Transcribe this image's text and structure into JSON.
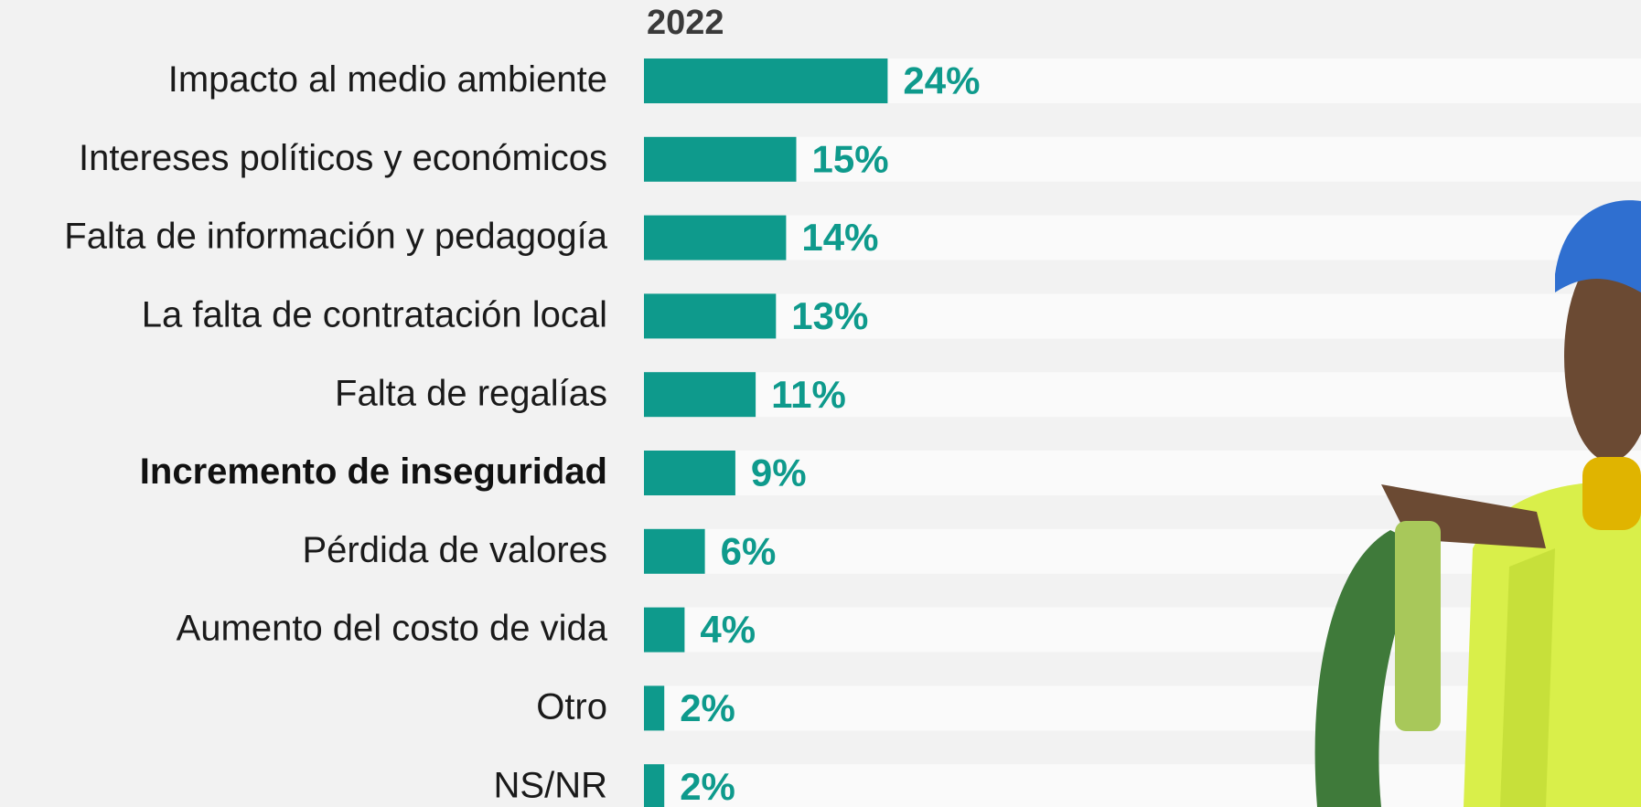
{
  "chart_data": {
    "type": "bar",
    "orientation": "horizontal",
    "title": "2022",
    "categories": [
      "Impacto al medio ambiente",
      "Intereses políticos y económicos",
      "Falta de información y pedagogía",
      "La falta de contratación local",
      "Falta de regalías",
      "Incremento de inseguridad",
      "Pérdida de valores",
      "Aumento del costo de vida",
      "Otro",
      "NS/NR"
    ],
    "values": [
      24,
      15,
      14,
      13,
      11,
      9,
      6,
      4,
      2,
      2
    ],
    "value_labels": [
      "24%",
      "15%",
      "14%",
      "13%",
      "11%",
      "9%",
      "6%",
      "4%",
      "2%",
      "2%"
    ],
    "color": "#0e9a8c"
  }
}
